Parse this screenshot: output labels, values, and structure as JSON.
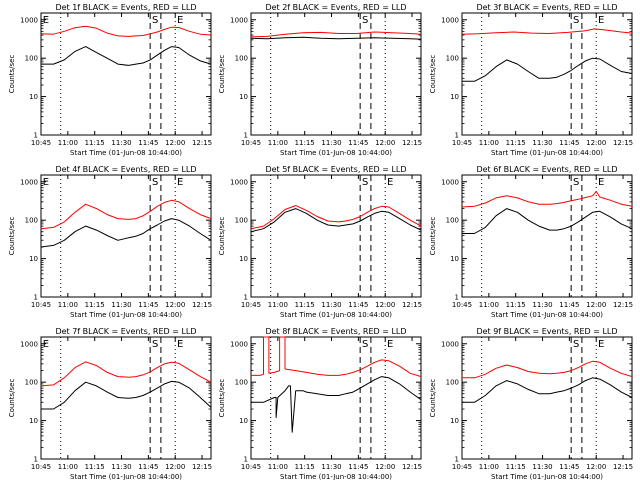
{
  "colors": {
    "events": "#000000",
    "lld": "#ff0000",
    "background": "#ffffff",
    "axes": "#000000"
  },
  "axes_common": {
    "xlabel": "Start Time (01-Jun-08 10:44:00)",
    "ylabel": "Counts/sec",
    "x_ticks": [
      "10:45",
      "11:00",
      "11:15",
      "11:30",
      "11:45",
      "12:00",
      "12:15"
    ],
    "x_tick_minutes": [
      1,
      16,
      31,
      46,
      61,
      76,
      91
    ],
    "xlim_minutes": [
      1,
      96
    ],
    "y_ticks": [
      "1",
      "10",
      "100",
      "1000"
    ],
    "ylim": [
      1,
      1500
    ],
    "yscale": "log"
  },
  "chart_data": [
    {
      "type": "line",
      "title": "Det 1f BLACK = Events, RED = LLD",
      "markers": [
        "E",
        "S",
        "E"
      ],
      "series": [
        {
          "color": "#000000",
          "x": [
            1,
            8,
            14,
            20,
            26,
            32,
            38,
            44,
            50,
            54,
            58,
            62,
            66,
            70,
            74,
            78,
            84,
            90,
            96
          ],
          "y": [
            70,
            70,
            90,
            150,
            200,
            140,
            100,
            70,
            65,
            70,
            75,
            90,
            120,
            160,
            200,
            190,
            120,
            85,
            70
          ]
        },
        {
          "color": "#ff0000",
          "x": [
            1,
            8,
            14,
            20,
            26,
            32,
            38,
            44,
            50,
            54,
            58,
            62,
            66,
            70,
            74,
            78,
            84,
            90,
            96
          ],
          "y": [
            430,
            420,
            500,
            620,
            680,
            600,
            450,
            380,
            370,
            380,
            390,
            430,
            480,
            560,
            640,
            630,
            500,
            420,
            400
          ]
        }
      ]
    },
    {
      "type": "line",
      "title": "Det 2f BLACK = Events, RED = LLD",
      "markers": [
        "",
        "S",
        ""
      ],
      "series": [
        {
          "color": "#000000",
          "x": [
            1,
            10,
            20,
            30,
            40,
            50,
            60,
            70,
            80,
            90,
            96
          ],
          "y": [
            330,
            320,
            340,
            350,
            330,
            320,
            330,
            340,
            330,
            320,
            310
          ]
        },
        {
          "color": "#ff0000",
          "x": [
            1,
            10,
            20,
            30,
            40,
            50,
            60,
            70,
            80,
            90,
            96
          ],
          "y": [
            360,
            370,
            420,
            460,
            470,
            440,
            440,
            480,
            460,
            440,
            420
          ]
        }
      ]
    },
    {
      "type": "line",
      "title": "Det 3f BLACK = Events, RED = LLD",
      "markers": [
        "",
        "S",
        "E"
      ],
      "series": [
        {
          "color": "#000000",
          "x": [
            1,
            8,
            14,
            20,
            26,
            32,
            38,
            44,
            50,
            54,
            58,
            62,
            66,
            70,
            74,
            78,
            84,
            90,
            96
          ],
          "y": [
            25,
            25,
            35,
            60,
            90,
            70,
            45,
            30,
            30,
            32,
            38,
            48,
            65,
            85,
            100,
            95,
            65,
            45,
            40
          ]
        },
        {
          "color": "#ff0000",
          "x": [
            1,
            10,
            20,
            30,
            40,
            50,
            60,
            70,
            75,
            80,
            90,
            96
          ],
          "y": [
            420,
            430,
            460,
            480,
            450,
            440,
            470,
            520,
            580,
            550,
            480,
            450
          ]
        }
      ]
    },
    {
      "type": "line",
      "title": "Det 4f BLACK = Events, RED = LLD",
      "markers": [
        "E",
        "S",
        "E"
      ],
      "series": [
        {
          "color": "#000000",
          "x": [
            1,
            8,
            14,
            20,
            26,
            32,
            38,
            44,
            50,
            54,
            58,
            62,
            66,
            70,
            74,
            78,
            84,
            90,
            96
          ],
          "y": [
            20,
            22,
            30,
            50,
            70,
            55,
            40,
            30,
            35,
            38,
            45,
            60,
            75,
            95,
            110,
            100,
            70,
            45,
            30
          ]
        },
        {
          "color": "#ff0000",
          "x": [
            1,
            8,
            14,
            20,
            26,
            32,
            38,
            44,
            50,
            54,
            58,
            62,
            66,
            70,
            74,
            78,
            84,
            90,
            96
          ],
          "y": [
            60,
            65,
            90,
            160,
            260,
            200,
            140,
            110,
            105,
            110,
            130,
            170,
            230,
            290,
            330,
            300,
            200,
            140,
            110
          ]
        }
      ]
    },
    {
      "type": "line",
      "title": "Det 5f BLACK = Events, RED = LLD",
      "markers": [
        "",
        "S",
        "E"
      ],
      "series": [
        {
          "color": "#000000",
          "x": [
            1,
            8,
            14,
            20,
            26,
            32,
            38,
            44,
            50,
            54,
            58,
            62,
            66,
            70,
            74,
            78,
            84,
            90,
            96
          ],
          "y": [
            50,
            60,
            90,
            160,
            200,
            150,
            100,
            75,
            70,
            75,
            80,
            95,
            120,
            150,
            170,
            160,
            110,
            75,
            55
          ]
        },
        {
          "color": "#ff0000",
          "x": [
            1,
            8,
            14,
            20,
            26,
            32,
            38,
            44,
            50,
            54,
            58,
            62,
            66,
            70,
            74,
            78,
            84,
            90,
            96
          ],
          "y": [
            60,
            70,
            110,
            190,
            240,
            180,
            125,
            95,
            90,
            95,
            105,
            125,
            160,
            200,
            230,
            220,
            150,
            100,
            70
          ]
        }
      ]
    },
    {
      "type": "line",
      "title": "Det 6f BLACK = Events, RED = LLD",
      "markers": [
        "",
        "S",
        "E"
      ],
      "series": [
        {
          "color": "#000000",
          "x": [
            1,
            8,
            14,
            20,
            26,
            32,
            38,
            44,
            50,
            54,
            58,
            62,
            66,
            70,
            74,
            78,
            84,
            90,
            96
          ],
          "y": [
            45,
            45,
            65,
            130,
            200,
            160,
            100,
            70,
            55,
            55,
            60,
            70,
            90,
            120,
            160,
            170,
            120,
            80,
            60
          ]
        },
        {
          "color": "#ff0000",
          "x": [
            1,
            8,
            14,
            20,
            26,
            32,
            38,
            44,
            50,
            54,
            58,
            62,
            66,
            70,
            74,
            76,
            78,
            84,
            90,
            96
          ],
          "y": [
            220,
            230,
            280,
            380,
            430,
            380,
            300,
            260,
            260,
            270,
            290,
            320,
            350,
            390,
            430,
            560,
            400,
            330,
            260,
            230
          ]
        }
      ]
    },
    {
      "type": "line",
      "title": "Det 7f BLACK = Events, RED = LLD",
      "markers": [
        "E",
        "S",
        "E"
      ],
      "series": [
        {
          "color": "#000000",
          "x": [
            1,
            8,
            14,
            20,
            26,
            32,
            38,
            44,
            50,
            54,
            58,
            62,
            66,
            70,
            74,
            78,
            84,
            90,
            96
          ],
          "y": [
            20,
            20,
            30,
            60,
            100,
            80,
            55,
            40,
            38,
            40,
            45,
            55,
            70,
            90,
            105,
            100,
            70,
            40,
            22
          ]
        },
        {
          "color": "#ff0000",
          "x": [
            1,
            8,
            14,
            20,
            26,
            32,
            38,
            44,
            50,
            54,
            58,
            62,
            66,
            70,
            74,
            78,
            84,
            90,
            96
          ],
          "y": [
            80,
            85,
            130,
            240,
            340,
            270,
            180,
            140,
            135,
            140,
            155,
            185,
            240,
            300,
            330,
            310,
            210,
            140,
            100
          ]
        }
      ]
    },
    {
      "type": "line",
      "title": "Det 8f BLACK = Events, RED = LLD",
      "markers": [
        "",
        "S",
        "E"
      ],
      "series": [
        {
          "color": "#000000",
          "x": [
            1,
            8,
            14,
            15,
            15,
            16,
            20,
            22,
            23,
            24,
            26,
            28,
            30,
            32,
            38,
            44,
            50,
            54,
            58,
            62,
            66,
            70,
            74,
            78,
            84,
            90,
            96
          ],
          "y": [
            30,
            30,
            40,
            40,
            12,
            40,
            60,
            80,
            80,
            5,
            60,
            60,
            60,
            55,
            50,
            45,
            45,
            50,
            55,
            70,
            90,
            115,
            140,
            130,
            90,
            55,
            35
          ]
        },
        {
          "color": "#ff0000",
          "x": [
            1,
            6,
            8,
            8,
            11,
            11,
            14,
            17,
            17,
            20,
            20,
            26,
            32,
            38,
            44,
            50,
            54,
            58,
            62,
            66,
            70,
            74,
            78,
            84,
            90,
            96
          ],
          "y": [
            150,
            150,
            160,
            1500,
            1500,
            170,
            180,
            200,
            1500,
            1500,
            220,
            200,
            180,
            160,
            150,
            150,
            160,
            180,
            210,
            260,
            330,
            380,
            360,
            260,
            170,
            140
          ]
        }
      ]
    },
    {
      "type": "line",
      "title": "Det 9f BLACK = Events, RED = LLD",
      "markers": [
        "",
        "S",
        "E"
      ],
      "series": [
        {
          "color": "#000000",
          "x": [
            1,
            8,
            14,
            20,
            26,
            32,
            38,
            44,
            50,
            54,
            58,
            62,
            66,
            70,
            74,
            78,
            84,
            90,
            96
          ],
          "y": [
            30,
            30,
            45,
            80,
            110,
            90,
            65,
            50,
            50,
            55,
            60,
            70,
            85,
            110,
            130,
            120,
            85,
            55,
            40
          ]
        },
        {
          "color": "#ff0000",
          "x": [
            1,
            8,
            14,
            20,
            26,
            32,
            38,
            44,
            50,
            54,
            58,
            62,
            66,
            70,
            74,
            78,
            84,
            90,
            96
          ],
          "y": [
            130,
            130,
            160,
            230,
            280,
            240,
            190,
            170,
            165,
            170,
            180,
            200,
            240,
            300,
            350,
            330,
            230,
            170,
            140
          ]
        }
      ]
    }
  ]
}
